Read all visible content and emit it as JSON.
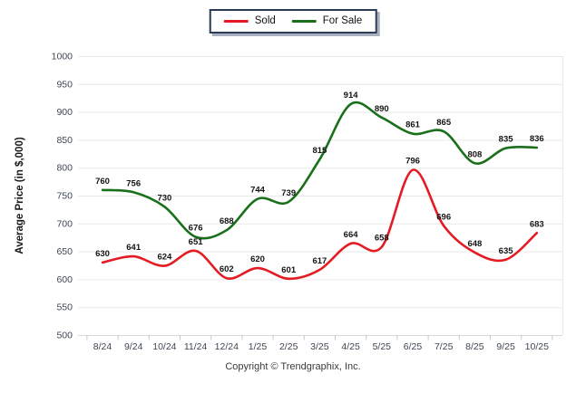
{
  "page": {
    "footer": "Copyright © Trendgraphix, Inc."
  },
  "legend": {
    "border_color": "#2B3A55",
    "position": "top-center"
  },
  "chart_data": {
    "type": "line",
    "title": "",
    "xlabel": "",
    "ylabel": "Average Price (in $,000)",
    "ylim": [
      500,
      1000
    ],
    "ytick_step": 50,
    "grid": "horizontal",
    "smooth": true,
    "point_labels": true,
    "axis_text_color": "#3E4653",
    "label_color": "#141414",
    "categories": [
      "8/24",
      "9/24",
      "10/24",
      "11/24",
      "12/24",
      "1/25",
      "2/25",
      "3/25",
      "4/25",
      "5/25",
      "6/25",
      "7/25",
      "8/25",
      "9/25",
      "10/25"
    ],
    "series": [
      {
        "name": "Sold",
        "color": "#E41B23",
        "values": [
          630,
          641,
          624,
          651,
          602,
          620,
          601,
          617,
          664,
          658,
          796,
          696,
          648,
          635,
          683
        ]
      },
      {
        "name": "For Sale",
        "color": "#1A701A",
        "values": [
          760,
          756,
          730,
          676,
          688,
          744,
          739,
          815,
          914,
          890,
          861,
          865,
          808,
          835,
          836
        ]
      }
    ]
  }
}
